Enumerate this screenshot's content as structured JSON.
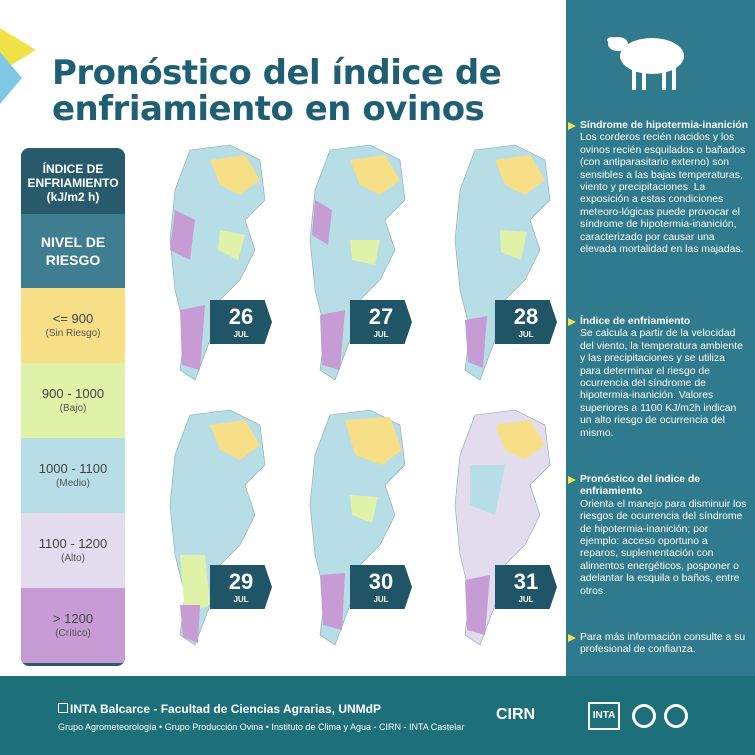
{
  "title": "Pronóstico del índice de enfriamiento en ovinos",
  "legend": {
    "header": "ÍNDICE DE ENFRIAMIENTO (kJ/m2 h)",
    "subheader": "NIVEL DE RIESGO",
    "bands": [
      {
        "range": "<= 900",
        "level": "(Sin Riesgo)",
        "color": "#f7df87"
      },
      {
        "range": "900 - 1000",
        "level": "(Bajo)",
        "color": "#dff2a8"
      },
      {
        "range": "1000 - 1100",
        "level": "(Medio)",
        "color": "#b7dde6"
      },
      {
        "range": "1100 - 1200",
        "level": "(Alto)",
        "color": "#e3dcee"
      },
      {
        "range": "> 1200",
        "level": "(Crítico)",
        "color": "#c79bd4"
      }
    ]
  },
  "maps": [
    {
      "day": "26",
      "month": "JUL"
    },
    {
      "day": "27",
      "month": "JUL"
    },
    {
      "day": "28",
      "month": "JUL"
    },
    {
      "day": "29",
      "month": "JUL"
    },
    {
      "day": "30",
      "month": "JUL"
    },
    {
      "day": "31",
      "month": "JUL"
    }
  ],
  "sidebar": {
    "sections": [
      {
        "heading": "Síndrome de hipotermia-inanición",
        "body": "Los corderos recién nacidos y los ovinos recién esquilados o bañados (con antiparasitario externo) son sensibles a las bajas temperaturas, viento y precipitaciones. La exposición a estas condiciones meteoro-lógicas puede provocar el síndrome de hipotermia-inanición, caracterizado por causar una elevada mortalidad en las majadas."
      },
      {
        "heading": "Índice de enfriamiento",
        "body": "Se calcula a partir de la velocidad del viento, la temperatura ambiente y las precipitaciones y se utiliza para determinar el riesgo de ocurrencia del síndrome de hipotermia-inanición. Valores superiores a 1100 KJ/m2h indican un alto riesgo de ocurrencia del mismo."
      },
      {
        "heading": "Pronóstico del índice de enfriamiento",
        "body": "Orienta el manejo para disminuir los riesgos de ocurrencia del síndrome de hipotermia-inanición; por ejemplo: acceso oportuno a reparos, suplementación con alimentos energéticos, posponer o adelantar la esquila o baños, entre otros."
      },
      {
        "heading": "",
        "body": "Para más información consulte a su profesional de confianza."
      }
    ]
  },
  "footer": {
    "line1": "INTA Balcarce - Facultad de Ciencias Agrarias, UNMdP",
    "line2": "Grupo Agrometeorología • Grupo Producción Ovina • Instituto de Clima y Agua - CIRN - INTA Castelar",
    "cirn": "CIRN",
    "inta": "INTA"
  }
}
